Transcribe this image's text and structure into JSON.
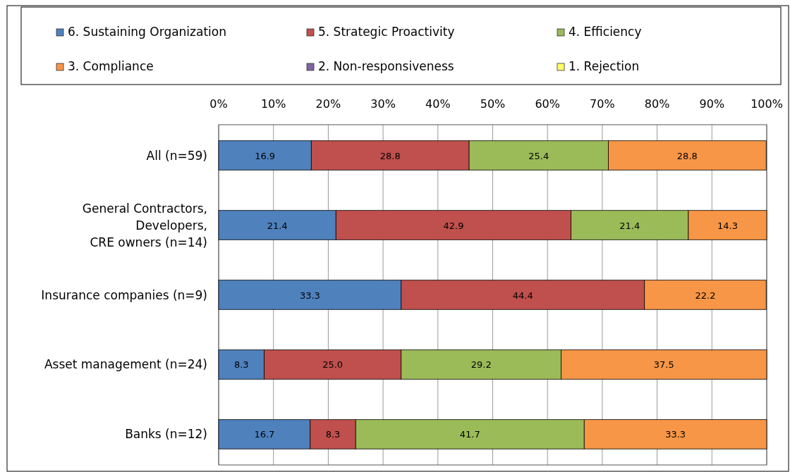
{
  "chart_data": {
    "type": "bar",
    "orientation": "horizontal",
    "stacked": true,
    "categories": [
      "All (n=59)",
      "General Contractors,\nDevelopers,\nCRE owners  (n=14)",
      "Insurance companies (n=9)",
      "Asset management (n=24)",
      "Banks (n=12)"
    ],
    "series": [
      {
        "name": "6. Sustaining Organization",
        "color": "#4f81bd",
        "values": [
          16.9,
          21.4,
          33.3,
          8.3,
          16.7
        ],
        "value_labels": [
          "16.9",
          "21.4",
          "33.3",
          "8.3",
          "16.7"
        ]
      },
      {
        "name": "5. Strategic Proactivity",
        "color": "#c0504d",
        "values": [
          28.8,
          42.9,
          44.4,
          25.0,
          8.3
        ],
        "value_labels": [
          "28.8",
          "42.9",
          "44.4",
          "25.0",
          "8.3"
        ]
      },
      {
        "name": "4. Efficiency",
        "color": "#9bbb59",
        "values": [
          25.4,
          21.4,
          null,
          29.2,
          41.7
        ],
        "value_labels": [
          "25.4",
          "21.4",
          null,
          "29.2",
          "41.7"
        ]
      },
      {
        "name": "3. Compliance",
        "color": "#f79646",
        "values": [
          28.8,
          14.3,
          22.2,
          37.5,
          33.3
        ],
        "value_labels": [
          "28.8",
          "14.3",
          "22.2",
          "37.5",
          "33.3"
        ]
      },
      {
        "name": "2. Non-responsiveness",
        "color": "#8064a2",
        "values": [
          null,
          null,
          null,
          null,
          null
        ]
      },
      {
        "name": "1. Rejection",
        "color": "#ffff66",
        "values": [
          null,
          null,
          null,
          null,
          null
        ]
      }
    ],
    "xlim": [
      0,
      100
    ],
    "xticks": [
      {
        "value": 0,
        "label": "0%"
      },
      {
        "value": 10,
        "label": "10%"
      },
      {
        "value": 20,
        "label": "20%"
      },
      {
        "value": 30,
        "label": "30%"
      },
      {
        "value": 40,
        "label": "40%"
      },
      {
        "value": 50,
        "label": "50%"
      },
      {
        "value": 60,
        "label": "60%"
      },
      {
        "value": 70,
        "label": "70%"
      },
      {
        "value": 80,
        "label": "80%"
      },
      {
        "value": 90,
        "label": "90%"
      },
      {
        "value": 100,
        "label": "100%"
      }
    ],
    "grid": "x",
    "legend": "top"
  }
}
